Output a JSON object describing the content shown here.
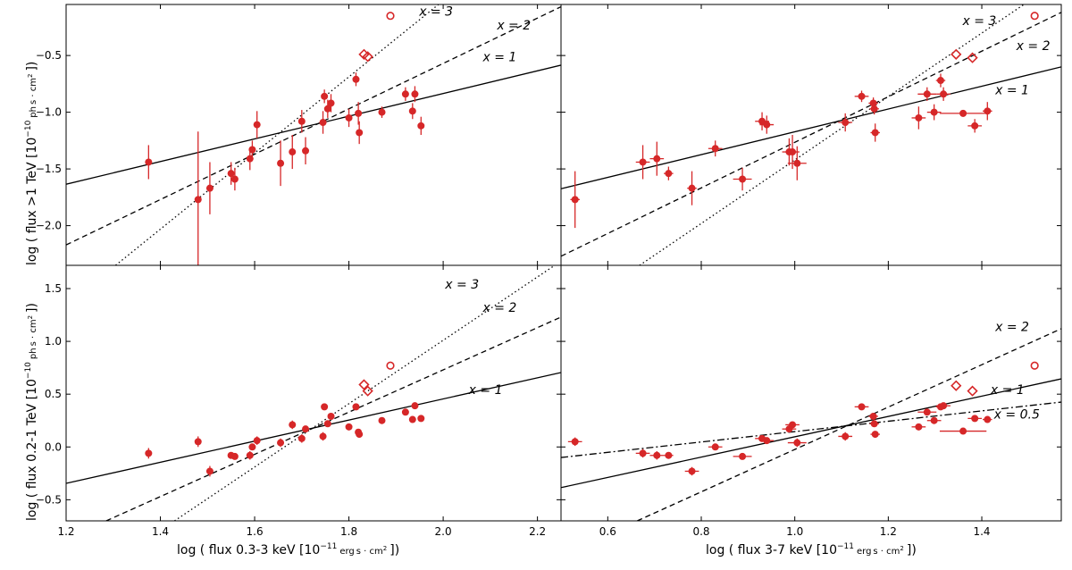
{
  "colors": {
    "points": "#d62728",
    "lines": "#000000"
  },
  "figure": {
    "xlabels": {
      "left": [
        "log ( flux 0.3-3 keV [10",
        "−11",
        "erg",
        "s · cm",
        "2",
        "])"
      ],
      "right": [
        "log ( flux 3-7 keV [10",
        "−11",
        "erg",
        "s · cm",
        "2",
        "])"
      ]
    },
    "ylabels": {
      "top": [
        "log ( flux >1 TeV [10",
        "−10",
        "ph",
        "s · cm",
        "2",
        "])"
      ],
      "bottom": [
        "log ( flux 0.2-1 TeV [10",
        "−10",
        "ph",
        "s · cm",
        "2",
        "])"
      ]
    }
  },
  "chart_data": [
    {
      "id": "top-left",
      "type": "scatter",
      "xlim": [
        1.2,
        2.25
      ],
      "ylim": [
        -2.35,
        -0.05
      ],
      "xticks": [
        1.2,
        1.4,
        1.6,
        1.8,
        2.0,
        2.2
      ],
      "xticklabels": [],
      "yticks": [
        -2.0,
        -1.5,
        -1.0,
        -0.5
      ],
      "yticklabels": [
        "−2.0",
        "−1.5",
        "−1.0",
        "−0.5"
      ],
      "points": [
        {
          "x": 1.375,
          "y": -1.44,
          "e": 0.15
        },
        {
          "x": 1.48,
          "y": -1.77,
          "e": 0.6
        },
        {
          "x": 1.505,
          "y": -1.67,
          "e": 0.23
        },
        {
          "x": 1.55,
          "y": -1.54,
          "e": 0.1
        },
        {
          "x": 1.558,
          "y": -1.59,
          "e": 0.1
        },
        {
          "x": 1.59,
          "y": -1.41,
          "e": 0.1
        },
        {
          "x": 1.595,
          "y": -1.33,
          "e": 0.08
        },
        {
          "x": 1.605,
          "y": -1.11,
          "e": 0.12
        },
        {
          "x": 1.655,
          "y": -1.45,
          "e": 0.2
        },
        {
          "x": 1.68,
          "y": -1.35,
          "e": 0.15
        },
        {
          "x": 1.7,
          "y": -1.08,
          "e": 0.1
        },
        {
          "x": 1.708,
          "y": -1.34,
          "e": 0.12
        },
        {
          "x": 1.745,
          "y": -1.09,
          "e": 0.1
        },
        {
          "x": 1.748,
          "y": -0.86,
          "e": 0.06
        },
        {
          "x": 1.755,
          "y": -0.97,
          "e": 0.08
        },
        {
          "x": 1.762,
          "y": -0.92,
          "e": 0.08
        },
        {
          "x": 1.8,
          "y": -1.05,
          "e": 0.08
        },
        {
          "x": 1.815,
          "y": -0.71,
          "e": 0.06
        },
        {
          "x": 1.82,
          "y": -1.01,
          "e": 0.1
        },
        {
          "x": 1.822,
          "y": -1.18,
          "e": 0.1
        },
        {
          "x": 1.87,
          "y": -1.0,
          "e": 0.05
        },
        {
          "x": 1.92,
          "y": -0.84,
          "e": 0.06
        },
        {
          "x": 1.935,
          "y": -0.99,
          "e": 0.07
        },
        {
          "x": 1.94,
          "y": -0.84,
          "e": 0.07
        },
        {
          "x": 1.953,
          "y": -1.12,
          "e": 0.08
        }
      ],
      "diamonds": [
        {
          "x": 1.832,
          "y": -0.49
        },
        {
          "x": 1.84,
          "y": -0.51
        }
      ],
      "open_circles": [
        {
          "x": 1.888,
          "y": -0.15
        }
      ],
      "lines": [
        {
          "label": "x = 1",
          "x1": 1.2,
          "y1": -1.635,
          "x2": 2.25,
          "y2": -0.585,
          "style": "solid",
          "lx": 2.12,
          "ly": -0.55
        },
        {
          "label": "x = 2",
          "x1": 1.2,
          "y1": -2.17,
          "x2": 2.25,
          "y2": -0.07,
          "style": "dashed",
          "lx": 2.15,
          "ly": -0.27
        },
        {
          "label": "x = 3",
          "x1": 1.305,
          "y1": -2.35,
          "x2": 1.99,
          "y2": -0.05,
          "style": "dotted",
          "lx": 1.985,
          "ly": -0.15
        }
      ]
    },
    {
      "id": "top-right",
      "type": "scatter",
      "xlim": [
        0.5,
        1.57
      ],
      "ylim": [
        -2.35,
        -0.05
      ],
      "xticks": [
        0.6,
        0.8,
        1.0,
        1.2,
        1.4
      ],
      "xticklabels": [],
      "yticks": [
        -2.0,
        -1.5,
        -1.0,
        -0.5
      ],
      "yticklabels": [],
      "points": [
        {
          "x": 0.53,
          "y": -1.77,
          "e": 0.25,
          "ex": 0.01
        },
        {
          "x": 0.675,
          "y": -1.44,
          "e": 0.15,
          "ex": 0.015
        },
        {
          "x": 0.705,
          "y": -1.41,
          "e": 0.15,
          "ex": 0.015
        },
        {
          "x": 0.73,
          "y": -1.54,
          "e": 0.06,
          "ex": 0.01
        },
        {
          "x": 0.78,
          "y": -1.67,
          "e": 0.15,
          "ex": 0.01
        },
        {
          "x": 0.83,
          "y": -1.32,
          "e": 0.07,
          "ex": 0.015
        },
        {
          "x": 0.888,
          "y": -1.59,
          "e": 0.1,
          "ex": 0.02
        },
        {
          "x": 0.93,
          "y": -1.08,
          "e": 0.08,
          "ex": 0.015
        },
        {
          "x": 0.94,
          "y": -1.11,
          "e": 0.08,
          "ex": 0.015
        },
        {
          "x": 0.988,
          "y": -1.35,
          "e": 0.12,
          "ex": 0.015
        },
        {
          "x": 0.995,
          "y": -1.35,
          "e": 0.15,
          "ex": 0.015
        },
        {
          "x": 1.005,
          "y": -1.45,
          "e": 0.15,
          "ex": 0.02
        },
        {
          "x": 1.108,
          "y": -1.09,
          "e": 0.08,
          "ex": 0.015
        },
        {
          "x": 1.143,
          "y": -0.86,
          "e": 0.05,
          "ex": 0.015
        },
        {
          "x": 1.168,
          "y": -0.92,
          "e": 0.05,
          "ex": 0.01
        },
        {
          "x": 1.17,
          "y": -0.97,
          "e": 0.05,
          "ex": 0.01
        },
        {
          "x": 1.172,
          "y": -1.18,
          "e": 0.08,
          "ex": 0.01
        },
        {
          "x": 1.265,
          "y": -1.05,
          "e": 0.1,
          "ex": 0.015
        },
        {
          "x": 1.283,
          "y": -0.84,
          "e": 0.06,
          "ex": 0.02
        },
        {
          "x": 1.298,
          "y": -1.0,
          "e": 0.07,
          "ex": 0.015
        },
        {
          "x": 1.312,
          "y": -0.72,
          "e": 0.06,
          "ex": 0.01
        },
        {
          "x": 1.318,
          "y": -0.84,
          "e": 0.06,
          "ex": 0.015
        },
        {
          "x": 1.36,
          "y": -1.01,
          "e": 0.03,
          "ex": 0.05
        },
        {
          "x": 1.385,
          "y": -1.12,
          "e": 0.06,
          "ex": 0.015
        },
        {
          "x": 1.412,
          "y": -0.99,
          "e": 0.08,
          "ex": 0.01
        }
      ],
      "diamonds": [
        {
          "x": 1.345,
          "y": -0.49
        },
        {
          "x": 1.38,
          "y": -0.52
        }
      ],
      "open_circles": [
        {
          "x": 1.513,
          "y": -0.15
        }
      ],
      "lines": [
        {
          "label": "x = 1",
          "x1": 0.5,
          "y1": -1.675,
          "x2": 1.57,
          "y2": -0.6,
          "style": "solid",
          "lx": 1.465,
          "ly": -0.84
        },
        {
          "label": "x = 2",
          "x1": 0.5,
          "y1": -2.27,
          "x2": 1.57,
          "y2": -0.12,
          "style": "dashed",
          "lx": 1.51,
          "ly": -0.45
        },
        {
          "label": "x = 3",
          "x1": 0.668,
          "y1": -2.35,
          "x2": 1.49,
          "y2": -0.05,
          "style": "dotted",
          "lx": 1.395,
          "ly": -0.23
        }
      ]
    },
    {
      "id": "bottom-left",
      "type": "scatter",
      "xlim": [
        1.2,
        2.25
      ],
      "ylim": [
        -0.7,
        1.72
      ],
      "xticks": [
        1.2,
        1.4,
        1.6,
        1.8,
        2.0,
        2.2
      ],
      "xticklabels": [
        "1.2",
        "1.4",
        "1.6",
        "1.8",
        "2.0",
        "2.2"
      ],
      "yticks": [
        -0.5,
        0.0,
        0.5,
        1.0,
        1.5
      ],
      "yticklabels": [
        "−0.5",
        "0.0",
        "0.5",
        "1.0",
        "1.5"
      ],
      "points": [
        {
          "x": 1.375,
          "y": -0.06,
          "e": 0.05
        },
        {
          "x": 1.48,
          "y": 0.05,
          "e": 0.05
        },
        {
          "x": 1.505,
          "y": -0.23,
          "e": 0.05
        },
        {
          "x": 1.55,
          "y": -0.08,
          "e": 0.03
        },
        {
          "x": 1.558,
          "y": -0.09,
          "e": 0.03
        },
        {
          "x": 1.59,
          "y": -0.08,
          "e": 0.04
        },
        {
          "x": 1.595,
          "y": 0.0,
          "e": 0.03
        },
        {
          "x": 1.605,
          "y": 0.06,
          "e": 0.04
        },
        {
          "x": 1.655,
          "y": 0.04,
          "e": 0.04
        },
        {
          "x": 1.68,
          "y": 0.21,
          "e": 0.04
        },
        {
          "x": 1.7,
          "y": 0.08,
          "e": 0.04
        },
        {
          "x": 1.708,
          "y": 0.17,
          "e": 0.03
        },
        {
          "x": 1.745,
          "y": 0.1,
          "e": 0.04
        },
        {
          "x": 1.748,
          "y": 0.38,
          "e": 0.02
        },
        {
          "x": 1.755,
          "y": 0.22,
          "e": 0.03
        },
        {
          "x": 1.762,
          "y": 0.29,
          "e": 0.03
        },
        {
          "x": 1.8,
          "y": 0.19,
          "e": 0.03
        },
        {
          "x": 1.815,
          "y": 0.38,
          "e": 0.02
        },
        {
          "x": 1.82,
          "y": 0.14,
          "e": 0.03
        },
        {
          "x": 1.822,
          "y": 0.12,
          "e": 0.03
        },
        {
          "x": 1.87,
          "y": 0.25,
          "e": 0.02
        },
        {
          "x": 1.92,
          "y": 0.33,
          "e": 0.02
        },
        {
          "x": 1.935,
          "y": 0.26,
          "e": 0.02
        },
        {
          "x": 1.94,
          "y": 0.39,
          "e": 0.02
        },
        {
          "x": 1.953,
          "y": 0.27,
          "e": 0.02
        }
      ],
      "diamonds": [
        {
          "x": 1.832,
          "y": 0.59
        },
        {
          "x": 1.84,
          "y": 0.53
        }
      ],
      "open_circles": [
        {
          "x": 1.888,
          "y": 0.77
        }
      ],
      "lines": [
        {
          "label": "x = 1",
          "x1": 1.2,
          "y1": -0.345,
          "x2": 2.25,
          "y2": 0.705,
          "style": "solid",
          "lx": 2.09,
          "ly": 0.5
        },
        {
          "label": "x = 2",
          "x1": 1.285,
          "y1": -0.7,
          "x2": 2.25,
          "y2": 1.23,
          "style": "dashed",
          "lx": 2.12,
          "ly": 1.28
        },
        {
          "label": "x = 3",
          "x1": 1.43,
          "y1": -0.7,
          "x2": 2.25,
          "y2": 1.76,
          "style": "dotted",
          "lx": 2.04,
          "ly": 1.5
        }
      ]
    },
    {
      "id": "bottom-right",
      "type": "scatter",
      "xlim": [
        0.5,
        1.57
      ],
      "ylim": [
        -0.7,
        1.72
      ],
      "xticks": [
        0.6,
        0.8,
        1.0,
        1.2,
        1.4
      ],
      "xticklabels": [
        "0.6",
        "0.8",
        "1.0",
        "1.2",
        "1.4"
      ],
      "yticks": [
        -0.5,
        0.0,
        0.5,
        1.0,
        1.5
      ],
      "yticklabels": [],
      "points": [
        {
          "x": 0.53,
          "y": 0.05,
          "e": 0.04,
          "ex": 0.015
        },
        {
          "x": 0.675,
          "y": -0.06,
          "e": 0.04,
          "ex": 0.015
        },
        {
          "x": 0.705,
          "y": -0.08,
          "e": 0.04,
          "ex": 0.015
        },
        {
          "x": 0.73,
          "y": -0.08,
          "e": 0.03,
          "ex": 0.01
        },
        {
          "x": 0.78,
          "y": -0.23,
          "e": 0.04,
          "ex": 0.015
        },
        {
          "x": 0.83,
          "y": 0.0,
          "e": 0.02,
          "ex": 0.015
        },
        {
          "x": 0.888,
          "y": -0.09,
          "e": 0.03,
          "ex": 0.02
        },
        {
          "x": 0.93,
          "y": 0.08,
          "e": 0.03,
          "ex": 0.015
        },
        {
          "x": 0.94,
          "y": 0.06,
          "e": 0.03,
          "ex": 0.015
        },
        {
          "x": 0.988,
          "y": 0.17,
          "e": 0.03,
          "ex": 0.015
        },
        {
          "x": 0.995,
          "y": 0.21,
          "e": 0.03,
          "ex": 0.015
        },
        {
          "x": 1.005,
          "y": 0.04,
          "e": 0.04,
          "ex": 0.02
        },
        {
          "x": 1.108,
          "y": 0.1,
          "e": 0.04,
          "ex": 0.015
        },
        {
          "x": 1.143,
          "y": 0.38,
          "e": 0.02,
          "ex": 0.015
        },
        {
          "x": 1.168,
          "y": 0.29,
          "e": 0.03,
          "ex": 0.01
        },
        {
          "x": 1.17,
          "y": 0.22,
          "e": 0.03,
          "ex": 0.01
        },
        {
          "x": 1.172,
          "y": 0.12,
          "e": 0.03,
          "ex": 0.01
        },
        {
          "x": 1.265,
          "y": 0.19,
          "e": 0.03,
          "ex": 0.015
        },
        {
          "x": 1.283,
          "y": 0.33,
          "e": 0.02,
          "ex": 0.02
        },
        {
          "x": 1.298,
          "y": 0.25,
          "e": 0.02,
          "ex": 0.015
        },
        {
          "x": 1.312,
          "y": 0.38,
          "e": 0.02,
          "ex": 0.01
        },
        {
          "x": 1.318,
          "y": 0.39,
          "e": 0.02,
          "ex": 0.015
        },
        {
          "x": 1.36,
          "y": 0.15,
          "e": 0.01,
          "ex": 0.05
        },
        {
          "x": 1.385,
          "y": 0.27,
          "e": 0.02,
          "ex": 0.015
        },
        {
          "x": 1.412,
          "y": 0.26,
          "e": 0.02,
          "ex": 0.01
        }
      ],
      "diamonds": [
        {
          "x": 1.345,
          "y": 0.58
        },
        {
          "x": 1.38,
          "y": 0.53
        }
      ],
      "open_circles": [
        {
          "x": 1.513,
          "y": 0.77
        }
      ],
      "lines": [
        {
          "label": "x = 1",
          "x1": 0.5,
          "y1": -0.385,
          "x2": 1.57,
          "y2": 0.645,
          "style": "solid",
          "lx": 1.455,
          "ly": 0.5
        },
        {
          "label": "x = 2",
          "x1": 0.663,
          "y1": -0.7,
          "x2": 1.57,
          "y2": 1.12,
          "style": "dashed",
          "lx": 1.465,
          "ly": 1.1
        },
        {
          "label": "x = 0.5",
          "x1": 0.5,
          "y1": -0.1,
          "x2": 1.57,
          "y2": 0.425,
          "style": "dashdot",
          "lx": 1.475,
          "ly": 0.27
        }
      ]
    }
  ]
}
